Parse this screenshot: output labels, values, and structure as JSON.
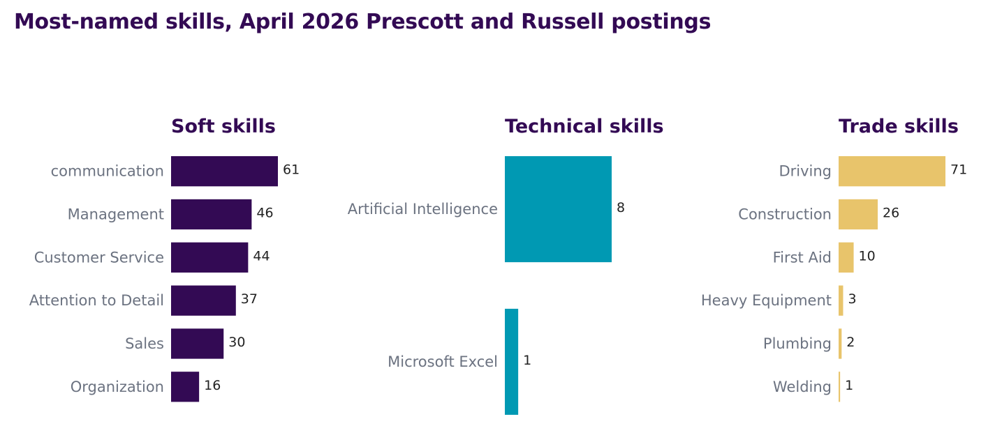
{
  "page": {
    "title": "Most-named skills, April 2026 Prescott and Russell postings"
  },
  "chart_data": [
    {
      "type": "bar",
      "orientation": "horizontal",
      "title": "Soft skills",
      "color": "#330a54",
      "categories": [
        "communication",
        "Management",
        "Customer Service",
        "Attention to Detail",
        "Sales",
        "Organization"
      ],
      "values": [
        61,
        46,
        44,
        37,
        30,
        16
      ],
      "xlim": [
        0,
        61
      ]
    },
    {
      "type": "bar",
      "orientation": "horizontal",
      "title": "Technical skills",
      "color": "#0099b3",
      "categories": [
        "Artificial Intelligence",
        "Microsoft Excel"
      ],
      "values": [
        8,
        1
      ],
      "xlim": [
        0,
        8
      ]
    },
    {
      "type": "bar",
      "orientation": "horizontal",
      "title": "Trade skills",
      "color": "#e8c46b",
      "categories": [
        "Driving",
        "Construction",
        "First Aid",
        "Heavy Equipment",
        "Plumbing",
        "Welding"
      ],
      "values": [
        71,
        26,
        10,
        3,
        2,
        1
      ],
      "xlim": [
        0,
        71
      ]
    }
  ]
}
